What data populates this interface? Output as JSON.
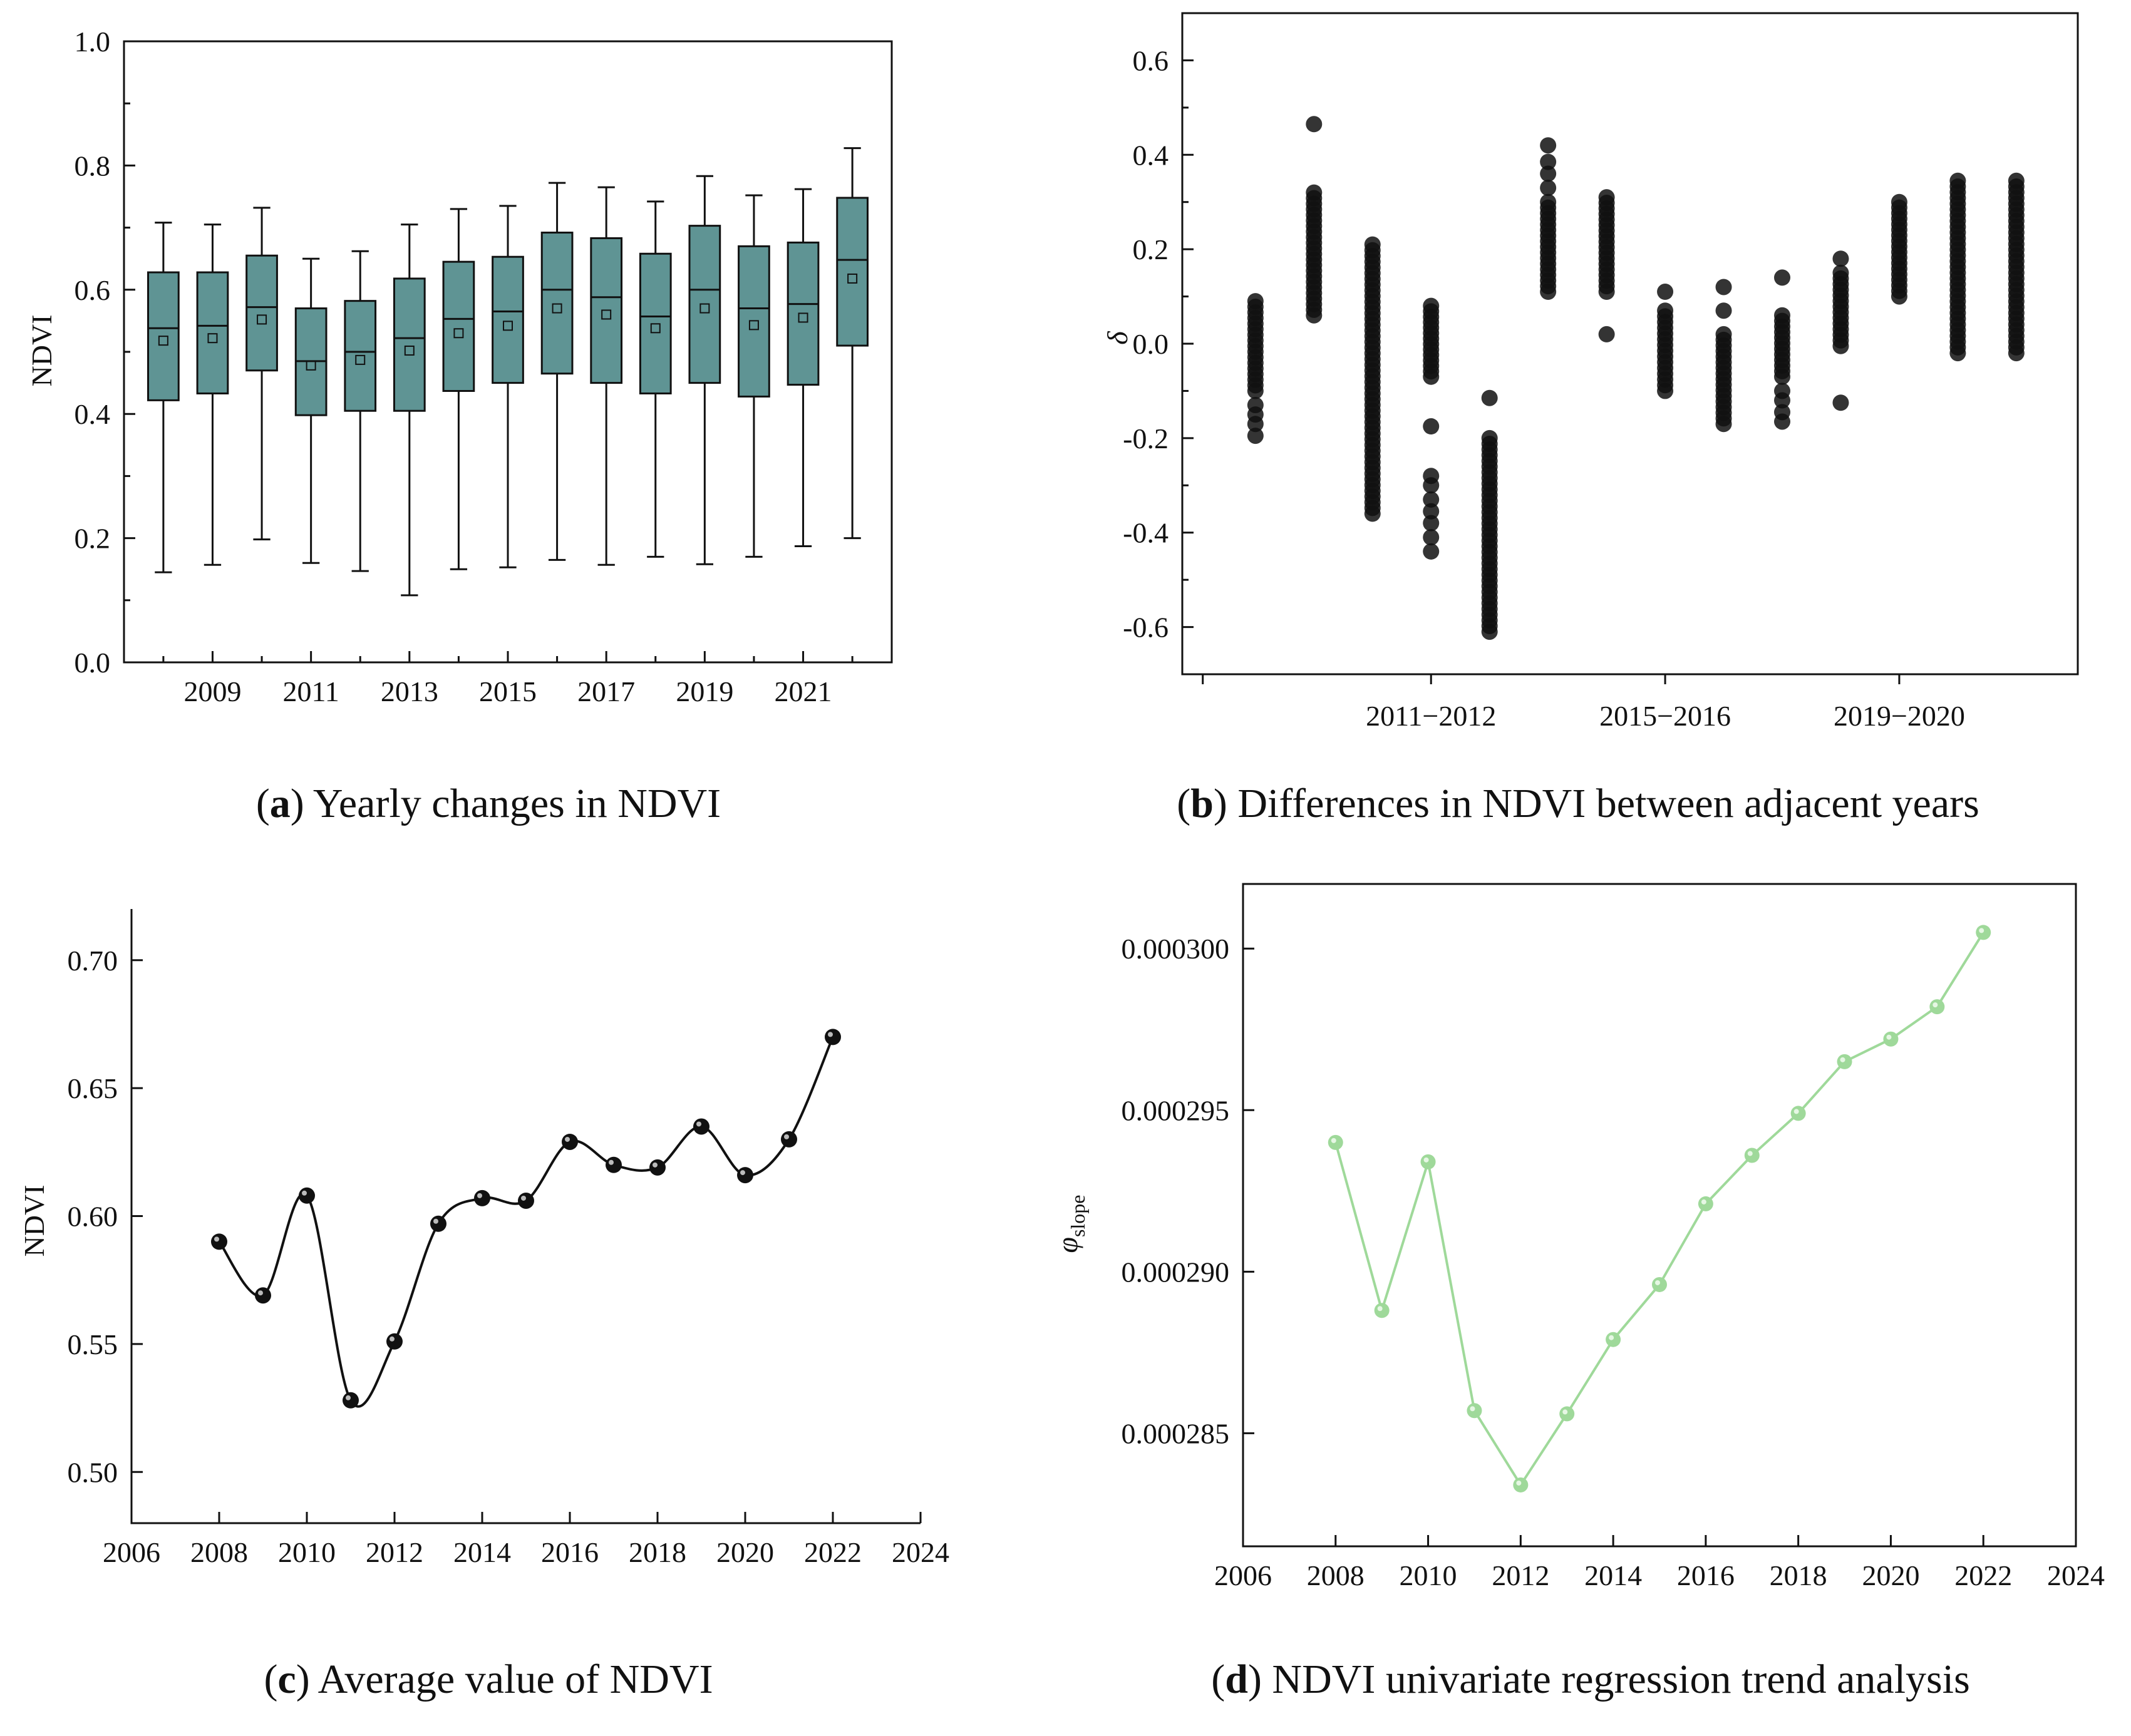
{
  "colors": {
    "box_fill": "#5f9494",
    "axis": "#111111",
    "scatter": "#111111",
    "line_c": "#111111",
    "line_d": "#9fd99a"
  },
  "chart_data": [
    {
      "id": "a",
      "type": "box",
      "ylabel": "NDVI",
      "ylim": [
        0.0,
        1.0
      ],
      "yticks": [
        "0.0",
        "0.2",
        "0.4",
        "0.6",
        "0.8",
        "1.0"
      ],
      "xticklabels": [
        "2009",
        "2011",
        "2013",
        "2015",
        "2017",
        "2019",
        "2021"
      ],
      "categories": [
        "2008",
        "2009",
        "2010",
        "2011",
        "2012",
        "2013",
        "2014",
        "2015",
        "2016",
        "2017",
        "2018",
        "2019",
        "2020",
        "2021",
        "2022"
      ],
      "boxes": [
        {
          "year": "2008",
          "min": 0.145,
          "q1": 0.422,
          "median": 0.538,
          "q3": 0.628,
          "max": 0.708,
          "mean": 0.518
        },
        {
          "year": "2009",
          "min": 0.157,
          "q1": 0.433,
          "median": 0.542,
          "q3": 0.628,
          "max": 0.705,
          "mean": 0.522
        },
        {
          "year": "2010",
          "min": 0.198,
          "q1": 0.47,
          "median": 0.572,
          "q3": 0.655,
          "max": 0.732,
          "mean": 0.552
        },
        {
          "year": "2011",
          "min": 0.16,
          "q1": 0.398,
          "median": 0.485,
          "q3": 0.57,
          "max": 0.65,
          "mean": 0.478
        },
        {
          "year": "2012",
          "min": 0.147,
          "q1": 0.405,
          "median": 0.5,
          "q3": 0.582,
          "max": 0.662,
          "mean": 0.487
        },
        {
          "year": "2013",
          "min": 0.108,
          "q1": 0.405,
          "median": 0.522,
          "q3": 0.618,
          "max": 0.705,
          "mean": 0.502
        },
        {
          "year": "2014",
          "min": 0.15,
          "q1": 0.437,
          "median": 0.553,
          "q3": 0.645,
          "max": 0.73,
          "mean": 0.53
        },
        {
          "year": "2015",
          "min": 0.153,
          "q1": 0.45,
          "median": 0.565,
          "q3": 0.653,
          "max": 0.735,
          "mean": 0.542
        },
        {
          "year": "2016",
          "min": 0.165,
          "q1": 0.465,
          "median": 0.6,
          "q3": 0.692,
          "max": 0.772,
          "mean": 0.57
        },
        {
          "year": "2017",
          "min": 0.157,
          "q1": 0.45,
          "median": 0.588,
          "q3": 0.683,
          "max": 0.765,
          "mean": 0.56
        },
        {
          "year": "2018",
          "min": 0.17,
          "q1": 0.433,
          "median": 0.557,
          "q3": 0.658,
          "max": 0.742,
          "mean": 0.538
        },
        {
          "year": "2019",
          "min": 0.158,
          "q1": 0.45,
          "median": 0.6,
          "q3": 0.703,
          "max": 0.783,
          "mean": 0.57
        },
        {
          "year": "2020",
          "min": 0.17,
          "q1": 0.428,
          "median": 0.57,
          "q3": 0.67,
          "max": 0.752,
          "mean": 0.543
        },
        {
          "year": "2021",
          "min": 0.187,
          "q1": 0.447,
          "median": 0.577,
          "q3": 0.676,
          "max": 0.762,
          "mean": 0.555
        },
        {
          "year": "2022",
          "min": 0.2,
          "q1": 0.51,
          "median": 0.648,
          "q3": 0.748,
          "max": 0.828,
          "mean": 0.618
        }
      ],
      "caption_letter": "a",
      "caption_text": "Yearly changes in NDVI"
    },
    {
      "id": "b",
      "type": "scatter",
      "ylabel": "δ",
      "ylim": [
        -0.7,
        0.7
      ],
      "yticks": [
        "-0.6",
        "-0.4",
        "-0.2",
        "0.0",
        "0.2",
        "0.4",
        "0.6"
      ],
      "xticklabels": [
        "2011−2012",
        "2015−2016",
        "2019−2020"
      ],
      "categories": [
        "2008−2009",
        "2009−2010",
        "2010−2011",
        "2011−2012",
        "2012−2013",
        "2013−2014",
        "2014−2015",
        "2015−2016",
        "2016−2017",
        "2017−2018",
        "2018−2019",
        "2019−2020",
        "2020−2021",
        "2021−2022"
      ],
      "series": [
        {
          "pair": "2008−2009",
          "dense_range": [
            -0.1,
            0.09
          ],
          "outliers": [
            -0.13,
            -0.15,
            -0.17,
            -0.195
          ]
        },
        {
          "pair": "2009−2010",
          "dense_range": [
            0.06,
            0.32
          ],
          "outliers": [
            0.465
          ]
        },
        {
          "pair": "2010−2011",
          "dense_range": [
            -0.36,
            0.21
          ],
          "outliers": []
        },
        {
          "pair": "2011−2012",
          "dense_range": [
            -0.07,
            0.08
          ],
          "outliers": [
            -0.175,
            -0.28,
            -0.3,
            -0.33,
            -0.355,
            -0.38,
            -0.41,
            -0.44
          ]
        },
        {
          "pair": "2012−2013",
          "dense_range": [
            -0.61,
            -0.2
          ],
          "outliers": [
            -0.115
          ]
        },
        {
          "pair": "2013−2014",
          "dense_range": [
            0.11,
            0.3
          ],
          "outliers": [
            0.33,
            0.36,
            0.385,
            0.42
          ]
        },
        {
          "pair": "2014−2015",
          "dense_range": [
            0.11,
            0.31
          ],
          "outliers": [
            0.02
          ]
        },
        {
          "pair": "2015−2016",
          "dense_range": [
            -0.1,
            0.07
          ],
          "outliers": [
            0.11
          ]
        },
        {
          "pair": "2016−2017",
          "dense_range": [
            -0.17,
            0.02
          ],
          "outliers": [
            0.07,
            0.12
          ]
        },
        {
          "pair": "2017−2018",
          "dense_range": [
            -0.07,
            0.06
          ],
          "outliers": [
            0.14,
            -0.1,
            -0.12,
            -0.145,
            -0.165
          ]
        },
        {
          "pair": "2018−2019",
          "dense_range": [
            -0.005,
            0.15
          ],
          "outliers": [
            0.18,
            -0.125
          ]
        },
        {
          "pair": "2019−2020",
          "dense_range": [
            0.1,
            0.3
          ],
          "outliers": []
        },
        {
          "pair": "2020−2021",
          "dense_range": [
            -0.02,
            0.345
          ],
          "outliers": []
        },
        {
          "pair": "2021−2022",
          "dense_range": [
            -0.02,
            0.345
          ],
          "outliers": []
        }
      ],
      "caption_letter": "b",
      "caption_text": "Differences in NDVI between adjacent years"
    },
    {
      "id": "c",
      "type": "line",
      "ylabel": "NDVI",
      "xlim": [
        2006,
        2024
      ],
      "ylim": [
        0.48,
        0.72
      ],
      "xticks": [
        "2006",
        "2008",
        "2010",
        "2012",
        "2014",
        "2016",
        "2018",
        "2020",
        "2022",
        "2024"
      ],
      "yticks": [
        "0.50",
        "0.55",
        "0.60",
        "0.65",
        "0.70"
      ],
      "x": [
        2008,
        2009,
        2010,
        2011,
        2012,
        2013,
        2014,
        2015,
        2016,
        2017,
        2018,
        2019,
        2020,
        2021,
        2022
      ],
      "values": [
        0.59,
        0.569,
        0.608,
        0.528,
        0.551,
        0.597,
        0.607,
        0.606,
        0.629,
        0.62,
        0.619,
        0.635,
        0.616,
        0.63,
        0.67
      ],
      "caption_letter": "c",
      "caption_text": "Average value of NDVI"
    },
    {
      "id": "d",
      "type": "line",
      "ylabel": "φ",
      "ylabel_sub": "slope",
      "xlim": [
        2006,
        2024
      ],
      "ylim": [
        0.0002815,
        0.000302
      ],
      "xticks": [
        "2006",
        "2008",
        "2010",
        "2012",
        "2014",
        "2016",
        "2018",
        "2020",
        "2022",
        "2024"
      ],
      "yticks": [
        "0.000285",
        "0.000290",
        "0.000295",
        "0.000300"
      ],
      "x": [
        2008,
        2009,
        2010,
        2011,
        2012,
        2013,
        2014,
        2015,
        2016,
        2017,
        2018,
        2019,
        2020,
        2021,
        2022
      ],
      "values": [
        0.000294,
        0.0002888,
        0.0002934,
        0.0002857,
        0.0002834,
        0.0002856,
        0.0002879,
        0.0002896,
        0.0002921,
        0.0002936,
        0.0002949,
        0.0002965,
        0.0002972,
        0.0002982,
        0.0003005
      ],
      "caption_letter": "d",
      "caption_text": "NDVI univariate regression trend analysis"
    }
  ]
}
